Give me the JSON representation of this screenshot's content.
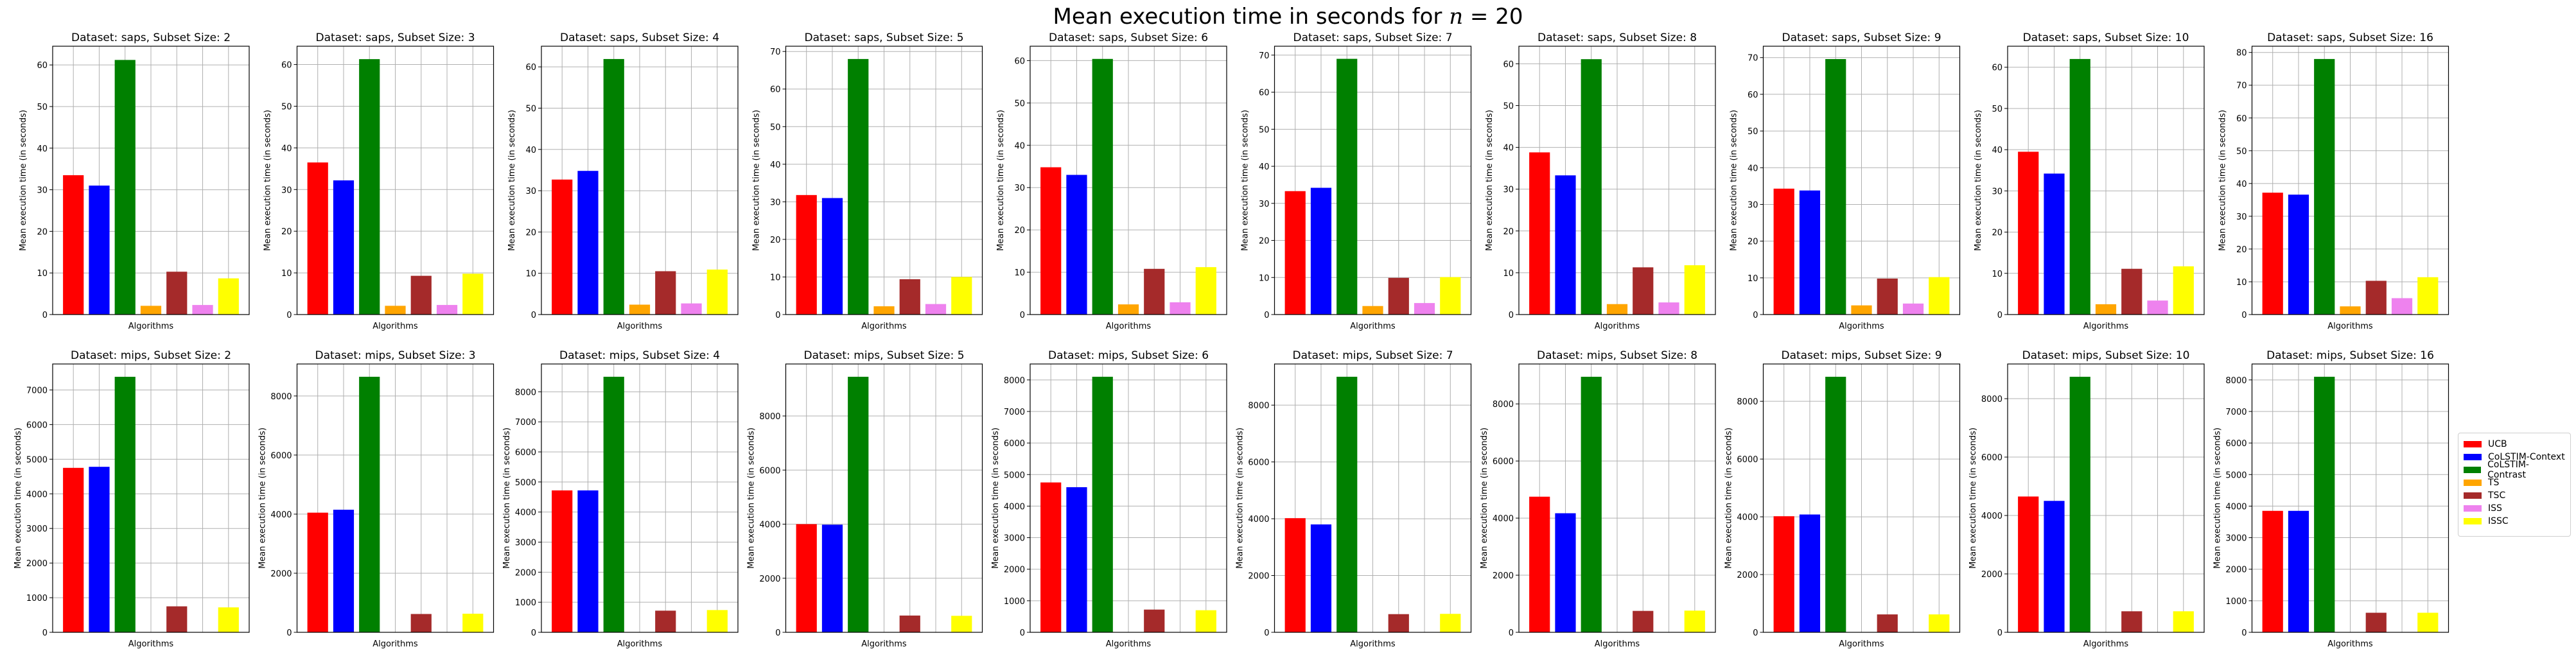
{
  "figure": {
    "title_prefix": "Mean execution time in seconds for",
    "title_var": "n",
    "title_value": "= 20"
  },
  "legend": [
    {
      "label": "UCB",
      "color": "#ff0000"
    },
    {
      "label": "CoLSTIM-Context",
      "color": "#0000ff"
    },
    {
      "label": "CoLSTIM-Contrast",
      "color": "#008000"
    },
    {
      "label": "TS",
      "color": "#ffa500"
    },
    {
      "label": "TSC",
      "color": "#a52a2a"
    },
    {
      "label": "ISS",
      "color": "#ee82ee"
    },
    {
      "label": "ISSC",
      "color": "#ffff00"
    }
  ],
  "chart_data": [
    {
      "type": "bar",
      "title": "Dataset: saps, Subset Size: 2",
      "xlabel": "Algorithms",
      "ylabel": "Mean execution time (in seconds)",
      "categories": [
        "UCB",
        "CoLSTIM-Context",
        "CoLSTIM-Contrast",
        "TS",
        "TSC",
        "ISS",
        "ISSC"
      ],
      "values": [
        33.5,
        31.0,
        61.2,
        2.1,
        10.3,
        2.3,
        8.7
      ],
      "ylim": [
        0,
        64.5
      ],
      "yticks": [
        0,
        10,
        20,
        30,
        40,
        50,
        60
      ]
    },
    {
      "type": "bar",
      "title": "Dataset: saps, Subset Size: 3",
      "xlabel": "Algorithms",
      "ylabel": "Mean execution time (in seconds)",
      "categories": [
        "UCB",
        "CoLSTIM-Context",
        "CoLSTIM-Contrast",
        "TS",
        "TSC",
        "ISS",
        "ISSC"
      ],
      "values": [
        36.5,
        32.2,
        61.3,
        2.1,
        9.3,
        2.3,
        9.8
      ],
      "ylim": [
        0,
        64.4
      ],
      "yticks": [
        0,
        10,
        20,
        30,
        40,
        50,
        60
      ]
    },
    {
      "type": "bar",
      "title": "Dataset: saps, Subset Size: 4",
      "xlabel": "Algorithms",
      "ylabel": "Mean execution time (in seconds)",
      "categories": [
        "UCB",
        "CoLSTIM-Context",
        "CoLSTIM-Contrast",
        "TS",
        "TSC",
        "ISS",
        "ISSC"
      ],
      "values": [
        32.7,
        34.8,
        61.9,
        2.4,
        10.5,
        2.7,
        10.9
      ],
      "ylim": [
        0,
        65
      ],
      "yticks": [
        0,
        10,
        20,
        30,
        40,
        50,
        60
      ]
    },
    {
      "type": "bar",
      "title": "Dataset: saps, Subset Size: 5",
      "xlabel": "Algorithms",
      "ylabel": "Mean execution time (in seconds)",
      "categories": [
        "UCB",
        "CoLSTIM-Context",
        "CoLSTIM-Contrast",
        "TS",
        "TSC",
        "ISS",
        "ISSC"
      ],
      "values": [
        31.8,
        31.0,
        68.0,
        2.2,
        9.4,
        2.8,
        10.0
      ],
      "ylim": [
        0,
        71.4
      ],
      "yticks": [
        0,
        10,
        20,
        30,
        40,
        50,
        60,
        70
      ]
    },
    {
      "type": "bar",
      "title": "Dataset: saps, Subset Size: 6",
      "xlabel": "Algorithms",
      "ylabel": "Mean execution time (in seconds)",
      "categories": [
        "UCB",
        "CoLSTIM-Context",
        "CoLSTIM-Contrast",
        "TS",
        "TSC",
        "ISS",
        "ISSC"
      ],
      "values": [
        34.8,
        33.0,
        60.4,
        2.4,
        10.8,
        2.9,
        11.2
      ],
      "ylim": [
        0,
        63.4
      ],
      "yticks": [
        0,
        10,
        20,
        30,
        40,
        50,
        60
      ]
    },
    {
      "type": "bar",
      "title": "Dataset: saps, Subset Size: 7",
      "xlabel": "Algorithms",
      "ylabel": "Mean execution time (in seconds)",
      "categories": [
        "UCB",
        "CoLSTIM-Context",
        "CoLSTIM-Contrast",
        "TS",
        "TSC",
        "ISS",
        "ISSC"
      ],
      "values": [
        33.3,
        34.2,
        69.0,
        2.3,
        9.9,
        3.1,
        10.1
      ],
      "ylim": [
        0,
        72.4
      ],
      "yticks": [
        0,
        10,
        20,
        30,
        40,
        50,
        60,
        70
      ]
    },
    {
      "type": "bar",
      "title": "Dataset: saps, Subset Size: 8",
      "xlabel": "Algorithms",
      "ylabel": "Mean execution time (in seconds)",
      "categories": [
        "UCB",
        "CoLSTIM-Context",
        "CoLSTIM-Contrast",
        "TS",
        "TSC",
        "ISS",
        "ISSC"
      ],
      "values": [
        38.8,
        33.3,
        61.1,
        2.5,
        11.3,
        2.9,
        11.8
      ],
      "ylim": [
        0,
        64.2
      ],
      "yticks": [
        0,
        10,
        20,
        30,
        40,
        50,
        60
      ]
    },
    {
      "type": "bar",
      "title": "Dataset: saps, Subset Size: 9",
      "xlabel": "Algorithms",
      "ylabel": "Mean execution time (in seconds)",
      "categories": [
        "UCB",
        "CoLSTIM-Context",
        "CoLSTIM-Contrast",
        "TS",
        "TSC",
        "ISS",
        "ISSC"
      ],
      "values": [
        34.3,
        33.8,
        69.6,
        2.5,
        9.8,
        3.0,
        10.2
      ],
      "ylim": [
        0,
        73.1
      ],
      "yticks": [
        0,
        10,
        20,
        30,
        40,
        50,
        60,
        70
      ]
    },
    {
      "type": "bar",
      "title": "Dataset: saps, Subset Size: 10",
      "xlabel": "Algorithms",
      "ylabel": "Mean execution time (in seconds)",
      "categories": [
        "UCB",
        "CoLSTIM-Context",
        "CoLSTIM-Contrast",
        "TS",
        "TSC",
        "ISS",
        "ISSC"
      ],
      "values": [
        39.5,
        34.2,
        62.0,
        2.5,
        11.1,
        3.4,
        11.7
      ],
      "ylim": [
        0,
        65.1
      ],
      "yticks": [
        0,
        10,
        20,
        30,
        40,
        50,
        60
      ]
    },
    {
      "type": "bar",
      "title": "Dataset: saps, Subset Size: 16",
      "xlabel": "Algorithms",
      "ylabel": "Mean execution time (in seconds)",
      "categories": [
        "UCB",
        "CoLSTIM-Context",
        "CoLSTIM-Contrast",
        "TS",
        "TSC",
        "ISS",
        "ISSC"
      ],
      "values": [
        37.2,
        36.6,
        78.0,
        2.5,
        10.3,
        5.0,
        11.4
      ],
      "ylim": [
        0,
        81.9
      ],
      "yticks": [
        0,
        10,
        20,
        30,
        40,
        50,
        60,
        70,
        80
      ]
    },
    {
      "type": "bar",
      "title": "Dataset: mips, Subset Size: 2",
      "xlabel": "Algorithms",
      "ylabel": "Mean execution time (in seconds)",
      "categories": [
        "UCB",
        "CoLSTIM-Context",
        "CoLSTIM-Contrast",
        "TS",
        "TSC",
        "ISS",
        "ISSC"
      ],
      "values": [
        4750,
        4780,
        7380,
        0,
        750,
        0,
        720
      ],
      "ylim": [
        0,
        7750
      ],
      "yticks": [
        0,
        1000,
        2000,
        3000,
        4000,
        5000,
        6000,
        7000
      ]
    },
    {
      "type": "bar",
      "title": "Dataset: mips, Subset Size: 3",
      "xlabel": "Algorithms",
      "ylabel": "Mean execution time (in seconds)",
      "categories": [
        "UCB",
        "CoLSTIM-Context",
        "CoLSTIM-Contrast",
        "TS",
        "TSC",
        "ISS",
        "ISSC"
      ],
      "values": [
        4050,
        4150,
        8650,
        0,
        620,
        0,
        630
      ],
      "ylim": [
        0,
        9083
      ],
      "yticks": [
        0,
        2000,
        4000,
        6000,
        8000
      ]
    },
    {
      "type": "bar",
      "title": "Dataset: mips, Subset Size: 4",
      "xlabel": "Algorithms",
      "ylabel": "Mean execution time (in seconds)",
      "categories": [
        "UCB",
        "CoLSTIM-Context",
        "CoLSTIM-Contrast",
        "TS",
        "TSC",
        "ISS",
        "ISSC"
      ],
      "values": [
        4720,
        4720,
        8500,
        0,
        720,
        0,
        740
      ],
      "ylim": [
        0,
        8925
      ],
      "yticks": [
        0,
        1000,
        2000,
        3000,
        4000,
        5000,
        6000,
        7000,
        8000
      ]
    },
    {
      "type": "bar",
      "title": "Dataset: mips, Subset Size: 5",
      "xlabel": "Algorithms",
      "ylabel": "Mean execution time (in seconds)",
      "categories": [
        "UCB",
        "CoLSTIM-Context",
        "CoLSTIM-Contrast",
        "TS",
        "TSC",
        "ISS",
        "ISSC"
      ],
      "values": [
        4000,
        3980,
        9450,
        0,
        620,
        0,
        610
      ],
      "ylim": [
        0,
        9923
      ],
      "yticks": [
        0,
        2000,
        4000,
        6000,
        8000
      ]
    },
    {
      "type": "bar",
      "title": "Dataset: mips, Subset Size: 6",
      "xlabel": "Algorithms",
      "ylabel": "Mean execution time (in seconds)",
      "categories": [
        "UCB",
        "CoLSTIM-Context",
        "CoLSTIM-Contrast",
        "TS",
        "TSC",
        "ISS",
        "ISSC"
      ],
      "values": [
        4750,
        4600,
        8100,
        0,
        720,
        0,
        700
      ],
      "ylim": [
        0,
        8505
      ],
      "yticks": [
        0,
        1000,
        2000,
        3000,
        4000,
        5000,
        6000,
        7000,
        8000
      ]
    },
    {
      "type": "bar",
      "title": "Dataset: mips, Subset Size: 7",
      "xlabel": "Algorithms",
      "ylabel": "Mean execution time (in seconds)",
      "categories": [
        "UCB",
        "CoLSTIM-Context",
        "CoLSTIM-Contrast",
        "TS",
        "TSC",
        "ISS",
        "ISSC"
      ],
      "values": [
        4020,
        3800,
        9000,
        0,
        640,
        0,
        650
      ],
      "ylim": [
        0,
        9450
      ],
      "yticks": [
        0,
        2000,
        4000,
        6000,
        8000
      ]
    },
    {
      "type": "bar",
      "title": "Dataset: mips, Subset Size: 8",
      "xlabel": "Algorithms",
      "ylabel": "Mean execution time (in seconds)",
      "categories": [
        "UCB",
        "CoLSTIM-Context",
        "CoLSTIM-Contrast",
        "TS",
        "TSC",
        "ISS",
        "ISSC"
      ],
      "values": [
        4750,
        4170,
        8950,
        0,
        750,
        0,
        760
      ],
      "ylim": [
        0,
        9398
      ],
      "yticks": [
        0,
        2000,
        4000,
        6000,
        8000
      ]
    },
    {
      "type": "bar",
      "title": "Dataset: mips, Subset Size: 9",
      "xlabel": "Algorithms",
      "ylabel": "Mean execution time (in seconds)",
      "categories": [
        "UCB",
        "CoLSTIM-Context",
        "CoLSTIM-Contrast",
        "TS",
        "TSC",
        "ISS",
        "ISSC"
      ],
      "values": [
        4020,
        4080,
        8850,
        0,
        620,
        0,
        620
      ],
      "ylim": [
        0,
        9293
      ],
      "yticks": [
        0,
        2000,
        4000,
        6000,
        8000
      ]
    },
    {
      "type": "bar",
      "title": "Dataset: mips, Subset Size: 10",
      "xlabel": "Algorithms",
      "ylabel": "Mean execution time (in seconds)",
      "categories": [
        "UCB",
        "CoLSTIM-Context",
        "CoLSTIM-Contrast",
        "TS",
        "TSC",
        "ISS",
        "ISSC"
      ],
      "values": [
        4650,
        4500,
        8750,
        0,
        720,
        0,
        720
      ],
      "ylim": [
        0,
        9188
      ],
      "yticks": [
        0,
        2000,
        4000,
        6000,
        8000
      ]
    },
    {
      "type": "bar",
      "title": "Dataset: mips, Subset Size: 16",
      "xlabel": "Algorithms",
      "ylabel": "Mean execution time (in seconds)",
      "categories": [
        "UCB",
        "CoLSTIM-Context",
        "CoLSTIM-Contrast",
        "TS",
        "TSC",
        "ISS",
        "ISSC"
      ],
      "values": [
        3850,
        3850,
        8100,
        0,
        620,
        0,
        620
      ],
      "ylim": [
        0,
        8505
      ],
      "yticks": [
        0,
        1000,
        2000,
        3000,
        4000,
        5000,
        6000,
        7000,
        8000
      ]
    }
  ]
}
